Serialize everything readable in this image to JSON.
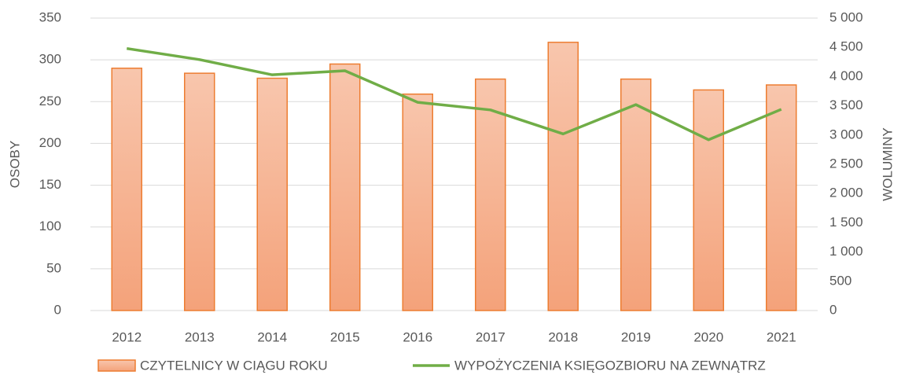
{
  "chart_data": {
    "type": "bar+line",
    "categories": [
      "2012",
      "2013",
      "2014",
      "2015",
      "2016",
      "2017",
      "2018",
      "2019",
      "2020",
      "2021"
    ],
    "series": [
      {
        "name": "CZYTELNICY W CIĄGU ROKU",
        "type": "bar",
        "color": "#f4a27a",
        "axis": "y",
        "values": [
          290,
          284,
          278,
          295,
          259,
          277,
          321,
          277,
          264,
          270
        ]
      },
      {
        "name": "WYPOŻYCZENIA KSIĘGOZBIORU NA ZEWNĄTRZ",
        "type": "line",
        "color": "#70ad47",
        "axis": "y2",
        "values": [
          4480,
          4290,
          4030,
          4100,
          3560,
          3430,
          3020,
          3520,
          2920,
          3440
        ]
      }
    ],
    "y_label": "OSOBY",
    "y2_label": "WOLUMINY",
    "ylim": [
      0,
      350
    ],
    "yticks": [
      0,
      50,
      100,
      150,
      200,
      250,
      300,
      350
    ],
    "y2lim": [
      0,
      5000
    ],
    "y2ticks": [
      0,
      500,
      {
        "value": 1000,
        "label": "1 000"
      },
      {
        "value": 1500,
        "label": "1 500"
      },
      {
        "value": 2000,
        "label": "2 000"
      },
      {
        "value": 2500,
        "label": "2 500"
      },
      {
        "value": 3000,
        "label": "3 000"
      },
      {
        "value": 3500,
        "label": "3 500"
      },
      {
        "value": 4000,
        "label": "4 000"
      },
      {
        "value": 4500,
        "label": "4 500"
      },
      {
        "value": 5000,
        "label": "5 000"
      }
    ],
    "grid": true,
    "legend": "bottom"
  }
}
